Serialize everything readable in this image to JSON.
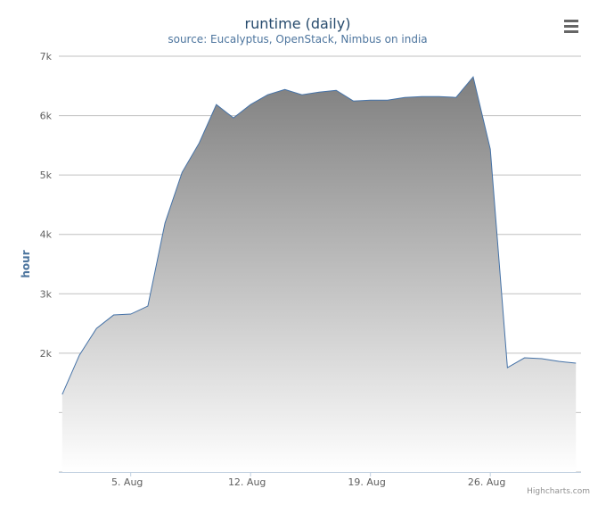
{
  "chart_data": {
    "type": "area",
    "title": "runtime (daily)",
    "subtitle": "source: Eucalyptus, OpenStack, Nimbus on india",
    "y_label": "hour",
    "credits": "Highcharts.com",
    "x": [
      1,
      2,
      3,
      4,
      5,
      6,
      7,
      8,
      9,
      10,
      11,
      12,
      13,
      14,
      15,
      16,
      17,
      18,
      19,
      20,
      21,
      22,
      23,
      24,
      25,
      26,
      27,
      28,
      29,
      30,
      31
    ],
    "series": [
      {
        "name": "runtime",
        "color": "#4572a7",
        "values": [
          1306,
          1967,
          2417,
          2643,
          2658,
          2793,
          4190,
          5045,
          5540,
          6186,
          5961,
          6186,
          6351,
          6441,
          6351,
          6396,
          6426,
          6246,
          6261,
          6261,
          6306,
          6321,
          6321,
          6306,
          6652,
          5435,
          1757,
          1922,
          1907,
          1862,
          1832
        ]
      }
    ],
    "xlim": [
      0.8,
      31.3
    ],
    "xticks": [
      {
        "value": 5,
        "label": "5. Aug"
      },
      {
        "value": 12,
        "label": "12. Aug"
      },
      {
        "value": 19,
        "label": "19. Aug"
      },
      {
        "value": 26,
        "label": "26. Aug"
      }
    ],
    "ylim": [
      0,
      7000
    ],
    "yticks": [
      {
        "value": 0,
        "label": null
      },
      {
        "value": 1000,
        "label": null
      },
      {
        "value": 2000,
        "label": "2k"
      },
      {
        "value": 3000,
        "label": "3k"
      },
      {
        "value": 4000,
        "label": "4k"
      },
      {
        "value": 5000,
        "label": "5k"
      },
      {
        "value": 6000,
        "label": "6k"
      },
      {
        "value": 7000,
        "label": "7k"
      }
    ],
    "grid": true
  }
}
